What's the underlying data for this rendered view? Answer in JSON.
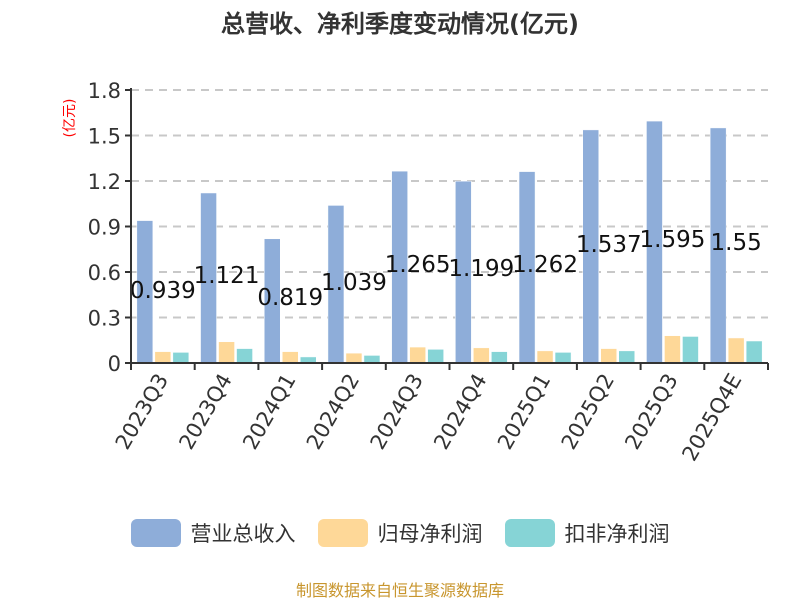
{
  "title": "总营收、净利季度变动情况(亿元)",
  "source": "制图数据来自恒生聚源数据库",
  "colors": {
    "revenue": "#8eadd9",
    "net_profit": "#fed898",
    "deducted_profit": "#86d4d6",
    "unit_label": "#ff0000",
    "source": "#c8962e"
  },
  "legend": [
    {
      "label": "营业总收入",
      "color": "#8eadd9"
    },
    {
      "label": "归母净利润",
      "color": "#fed898"
    },
    {
      "label": "扣非净利润",
      "color": "#86d4d6"
    }
  ],
  "chart_data": {
    "type": "bar",
    "title": "总营收、净利季度变动情况(亿元)",
    "xlabel": "",
    "ylabel": "(亿元)",
    "ylim": [
      0,
      1.8
    ],
    "yticks": [
      0,
      0.3,
      0.6,
      0.9,
      1.2,
      1.5,
      1.8
    ],
    "ytick_labels": [
      "0",
      "0.3",
      "0.6",
      "0.9",
      "1.2",
      "1.5",
      "1.8"
    ],
    "grid": true,
    "legend_position": "bottom",
    "categories": [
      "2023Q3",
      "2023Q4",
      "2024Q1",
      "2024Q2",
      "2024Q3",
      "2024Q4",
      "2025Q1",
      "2025Q2",
      "2025Q3",
      "2025Q4E"
    ],
    "series": [
      {
        "name": "营业总收入",
        "values": [
          0.939,
          1.121,
          0.819,
          1.039,
          1.265,
          1.199,
          1.262,
          1.537,
          1.595,
          1.55
        ],
        "labels": [
          "0.939",
          "1.121",
          "0.819",
          "1.039",
          "1.265",
          "1.199",
          "1.262",
          "1.537",
          "1.595",
          "1.55"
        ]
      },
      {
        "name": "归母净利润",
        "values": [
          0.075,
          0.14,
          0.075,
          0.065,
          0.105,
          0.1,
          0.08,
          0.095,
          0.18,
          0.165
        ]
      },
      {
        "name": "扣非净利润",
        "values": [
          0.07,
          0.095,
          0.04,
          0.05,
          0.09,
          0.075,
          0.07,
          0.08,
          0.175,
          0.145
        ]
      }
    ]
  }
}
